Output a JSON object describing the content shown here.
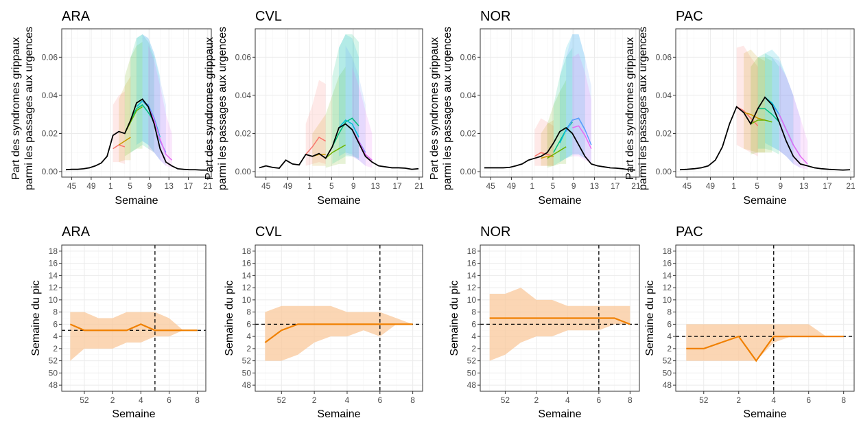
{
  "colors": {
    "observed": "#000000",
    "peak_line": "#F08000",
    "peak_band": "#F9C89B",
    "grid_major": "#EBEBEB",
    "grid_minor": "#F5F5F5",
    "panel_border": "#333333",
    "forecast_palette": [
      "#F8766D",
      "#E58700",
      "#C99800",
      "#A3A500",
      "#6BB100",
      "#00BA38",
      "#00BF7D",
      "#00C0AF",
      "#00BCD8",
      "#00B0F6",
      "#619CFF",
      "#B983FF",
      "#E76BF3",
      "#FD61D1",
      "#FF67A4"
    ]
  },
  "chart_data": [
    {
      "type": "line",
      "region": "ARA",
      "title": "ARA",
      "xlabel": "Semaine",
      "ylabel_lines": [
        "Part des syndromes grippaux",
        "parmi les passages aux urgences"
      ],
      "x_ticks": [
        "45",
        "49",
        "1",
        "5",
        "9",
        "13",
        "17",
        "21"
      ],
      "y_ticks": [
        "0.00",
        "0.02",
        "0.04",
        "0.06"
      ],
      "ylim": [
        0,
        0.072
      ],
      "observed": [
        0.001,
        0.0012,
        0.0012,
        0.0015,
        0.002,
        0.003,
        0.0045,
        0.008,
        0.019,
        0.021,
        0.02,
        0.027,
        0.036,
        0.038,
        0.034,
        0.025,
        0.012,
        0.005,
        0.003,
        0.0015,
        0.0012,
        0.001,
        0.001,
        0.0008,
        0.0008
      ],
      "forecasts": [
        {
          "start": 8,
          "values": [
            0.012,
            0.014,
            0.013
          ],
          "lo": [
            0.005,
            0.005,
            0.004
          ],
          "hi": [
            0.035,
            0.04,
            0.042
          ]
        },
        {
          "start": 9,
          "values": [
            0.014,
            0.016,
            0.018
          ],
          "lo": [
            0.005,
            0.006,
            0.006
          ],
          "hi": [
            0.038,
            0.045,
            0.05
          ]
        },
        {
          "start": 10,
          "values": [
            0.02,
            0.026,
            0.032,
            0.034
          ],
          "lo": [
            0.008,
            0.01,
            0.012,
            0.012
          ],
          "hi": [
            0.05,
            0.06,
            0.066,
            0.068
          ]
        },
        {
          "start": 11,
          "values": [
            0.027,
            0.033,
            0.035,
            0.031,
            0.026
          ],
          "lo": [
            0.01,
            0.012,
            0.014,
            0.012,
            0.01
          ],
          "hi": [
            0.06,
            0.07,
            0.072,
            0.068,
            0.06
          ]
        },
        {
          "start": 12,
          "values": [
            0.034,
            0.037,
            0.034,
            0.028,
            0.018
          ],
          "lo": [
            0.014,
            0.016,
            0.014,
            0.01,
            0.006
          ],
          "hi": [
            0.07,
            0.072,
            0.07,
            0.062,
            0.05
          ]
        },
        {
          "start": 13,
          "values": [
            0.037,
            0.035,
            0.028,
            0.016,
            0.01
          ],
          "lo": [
            0.016,
            0.014,
            0.01,
            0.006,
            0.003
          ],
          "hi": [
            0.072,
            0.07,
            0.062,
            0.048,
            0.035
          ]
        },
        {
          "start": 14,
          "values": [
            0.034,
            0.027,
            0.017,
            0.009,
            0.006
          ],
          "lo": [
            0.012,
            0.01,
            0.006,
            0.003,
            0.002
          ],
          "hi": [
            0.066,
            0.058,
            0.045,
            0.03,
            0.02
          ]
        }
      ]
    },
    {
      "type": "line",
      "region": "CVL",
      "title": "CVL",
      "xlabel": "Semaine",
      "ylabel_lines": [
        "Part des syndromes grippaux",
        "parmi les passages aux urgences"
      ],
      "x_ticks": [
        "45",
        "49",
        "1",
        "5",
        "9",
        "13",
        "17",
        "21"
      ],
      "y_ticks": [
        "0.00",
        "0.02",
        "0.04",
        "0.06"
      ],
      "ylim": [
        0,
        0.072
      ],
      "observed": [
        0.002,
        0.003,
        0.0022,
        0.0018,
        0.006,
        0.004,
        0.0035,
        0.009,
        0.008,
        0.0095,
        0.007,
        0.013,
        0.023,
        0.025,
        0.022,
        0.015,
        0.008,
        0.005,
        0.003,
        0.0025,
        0.002,
        0.002,
        0.0018,
        0.0012,
        0.0015
      ],
      "forecasts": [
        {
          "start": 7,
          "values": [
            0.009,
            0.013,
            0.018,
            0.016
          ],
          "lo": [
            0.003,
            0.004,
            0.005,
            0.004
          ],
          "hi": [
            0.025,
            0.035,
            0.048,
            0.046
          ]
        },
        {
          "start": 8,
          "values": [
            0.008,
            0.009,
            0.009
          ],
          "lo": [
            0.003,
            0.003,
            0.003
          ],
          "hi": [
            0.02,
            0.025,
            0.03
          ]
        },
        {
          "start": 10,
          "values": [
            0.007,
            0.01,
            0.012,
            0.014
          ],
          "lo": [
            0.002,
            0.003,
            0.004,
            0.004
          ],
          "hi": [
            0.03,
            0.04,
            0.05,
            0.055
          ]
        },
        {
          "start": 11,
          "values": [
            0.013,
            0.02,
            0.026,
            0.028,
            0.024
          ],
          "lo": [
            0.004,
            0.006,
            0.008,
            0.008,
            0.007
          ],
          "hi": [
            0.05,
            0.065,
            0.072,
            0.072,
            0.068
          ]
        },
        {
          "start": 12,
          "values": [
            0.023,
            0.027,
            0.025,
            0.018
          ],
          "lo": [
            0.008,
            0.01,
            0.009,
            0.006
          ],
          "hi": [
            0.065,
            0.072,
            0.07,
            0.06
          ]
        },
        {
          "start": 13,
          "values": [
            0.025,
            0.022,
            0.016,
            0.01
          ],
          "lo": [
            0.009,
            0.008,
            0.006,
            0.003
          ],
          "hi": [
            0.066,
            0.06,
            0.05,
            0.035
          ]
        },
        {
          "start": 14,
          "values": [
            0.022,
            0.016,
            0.009,
            0.006
          ],
          "lo": [
            0.008,
            0.006,
            0.003,
            0.002
          ],
          "hi": [
            0.055,
            0.045,
            0.032,
            0.02
          ]
        }
      ]
    },
    {
      "type": "line",
      "region": "NOR",
      "title": "NOR",
      "xlabel": "Semaine",
      "ylabel_lines": [
        "Part des syndromes grippaux",
        "parmi les passages aux urgences"
      ],
      "x_ticks": [
        "45",
        "49",
        "1",
        "5",
        "9",
        "13",
        "17",
        "21"
      ],
      "y_ticks": [
        "0.00",
        "0.02",
        "0.04",
        "0.06"
      ],
      "ylim": [
        0,
        0.072
      ],
      "observed": [
        0.002,
        0.002,
        0.002,
        0.002,
        0.0022,
        0.003,
        0.004,
        0.006,
        0.007,
        0.008,
        0.01,
        0.015,
        0.021,
        0.023,
        0.02,
        0.014,
        0.008,
        0.004,
        0.003,
        0.0025,
        0.002,
        0.0018,
        0.0015,
        0.001,
        0.0008
      ],
      "forecasts": [
        {
          "start": 8,
          "values": [
            0.008,
            0.01,
            0.009,
            0.008
          ],
          "lo": [
            0.003,
            0.003,
            0.003,
            0.003
          ],
          "hi": [
            0.022,
            0.028,
            0.026,
            0.024
          ]
        },
        {
          "start": 9,
          "values": [
            0.007,
            0.008,
            0.008
          ],
          "lo": [
            0.003,
            0.003,
            0.003
          ],
          "hi": [
            0.02,
            0.025,
            0.027
          ]
        },
        {
          "start": 10,
          "values": [
            0.007,
            0.009,
            0.011,
            0.013
          ],
          "lo": [
            0.002,
            0.003,
            0.004,
            0.004
          ],
          "hi": [
            0.025,
            0.035,
            0.042,
            0.048
          ]
        },
        {
          "start": 11,
          "values": [
            0.01,
            0.016,
            0.022,
            0.026
          ],
          "lo": [
            0.003,
            0.005,
            0.007,
            0.008
          ],
          "hi": [
            0.035,
            0.05,
            0.06,
            0.065
          ]
        },
        {
          "start": 12,
          "values": [
            0.015,
            0.022,
            0.027,
            0.028,
            0.022
          ],
          "lo": [
            0.005,
            0.007,
            0.009,
            0.009,
            0.007
          ],
          "hi": [
            0.05,
            0.065,
            0.072,
            0.072,
            0.06
          ]
        },
        {
          "start": 13,
          "values": [
            0.021,
            0.027,
            0.028,
            0.022,
            0.014
          ],
          "lo": [
            0.007,
            0.009,
            0.009,
            0.007,
            0.004
          ],
          "hi": [
            0.06,
            0.072,
            0.072,
            0.06,
            0.045
          ]
        },
        {
          "start": 14,
          "values": [
            0.023,
            0.024,
            0.019,
            0.012
          ],
          "lo": [
            0.008,
            0.008,
            0.006,
            0.004
          ],
          "hi": [
            0.06,
            0.062,
            0.052,
            0.038
          ]
        }
      ]
    },
    {
      "type": "line",
      "region": "PAC",
      "title": "PAC",
      "xlabel": "Semaine",
      "ylabel_lines": [
        "Part des syndromes grippaux",
        "parmi les passages aux urgences"
      ],
      "x_ticks": [
        "45",
        "49",
        "1",
        "5",
        "9",
        "13",
        "17",
        "21"
      ],
      "y_ticks": [
        "0.00",
        "0.02",
        "0.04",
        "0.06"
      ],
      "ylim": [
        0,
        0.072
      ],
      "observed": [
        0.001,
        0.0012,
        0.0015,
        0.002,
        0.003,
        0.006,
        0.013,
        0.025,
        0.034,
        0.031,
        0.025,
        0.033,
        0.039,
        0.035,
        0.026,
        0.016,
        0.008,
        0.004,
        0.003,
        0.002,
        0.0015,
        0.0012,
        0.001,
        0.0008,
        0.001
      ],
      "forecasts": [
        {
          "start": 8,
          "values": [
            0.034,
            0.032,
            0.028,
            0.024
          ],
          "lo": [
            0.014,
            0.012,
            0.01,
            0.008
          ],
          "hi": [
            0.065,
            0.066,
            0.06,
            0.055
          ]
        },
        {
          "start": 9,
          "values": [
            0.031,
            0.03,
            0.028,
            0.027
          ],
          "lo": [
            0.012,
            0.011,
            0.01,
            0.01
          ],
          "hi": [
            0.062,
            0.064,
            0.06,
            0.058
          ]
        },
        {
          "start": 10,
          "values": [
            0.025,
            0.027,
            0.027,
            0.026
          ],
          "lo": [
            0.009,
            0.01,
            0.01,
            0.01
          ],
          "hi": [
            0.055,
            0.06,
            0.06,
            0.058
          ]
        },
        {
          "start": 11,
          "values": [
            0.033,
            0.033,
            0.03,
            0.026
          ],
          "lo": [
            0.012,
            0.012,
            0.011,
            0.009
          ],
          "hi": [
            0.06,
            0.062,
            0.06,
            0.055
          ]
        },
        {
          "start": 12,
          "values": [
            0.039,
            0.036,
            0.03,
            0.022,
            0.014
          ],
          "lo": [
            0.015,
            0.013,
            0.011,
            0.008,
            0.004
          ],
          "hi": [
            0.062,
            0.064,
            0.06,
            0.05,
            0.04
          ]
        },
        {
          "start": 13,
          "values": [
            0.035,
            0.03,
            0.022,
            0.014,
            0.008
          ],
          "lo": [
            0.013,
            0.011,
            0.008,
            0.004,
            0.002
          ],
          "hi": [
            0.06,
            0.058,
            0.05,
            0.04,
            0.028
          ]
        },
        {
          "start": 14,
          "values": [
            0.03,
            0.022,
            0.014,
            0.008,
            0.004
          ],
          "lo": [
            0.011,
            0.008,
            0.004,
            0.002,
            0.001
          ],
          "hi": [
            0.056,
            0.05,
            0.04,
            0.028,
            0.016
          ]
        }
      ]
    },
    {
      "type": "line",
      "region": "ARA",
      "title": "ARA",
      "xlabel": "Semaine",
      "ylabel": "Semaine du pic",
      "x_ticks": [
        "52",
        "2",
        "4",
        "6",
        "8"
      ],
      "y_ticks": [
        "48",
        "50",
        "52",
        "2",
        "4",
        "6",
        "8",
        "10",
        "12",
        "14",
        "16",
        "18"
      ],
      "x": [
        51,
        52,
        53,
        54,
        55,
        56,
        57,
        58,
        59,
        60
      ],
      "peak": [
        6,
        5,
        5,
        5,
        5,
        6,
        5,
        5,
        5,
        5
      ],
      "peak_lo": [
        52,
        2,
        2,
        2,
        3,
        3,
        4,
        4,
        5,
        5
      ],
      "peak_hi": [
        8,
        8,
        7,
        7,
        8,
        8,
        8,
        7,
        5,
        5
      ],
      "observed_peak_week": 5,
      "current_week": 5
    },
    {
      "type": "line",
      "region": "CVL",
      "title": "CVL",
      "xlabel": "Semaine",
      "ylabel": "Semaine du pic",
      "x_ticks": [
        "52",
        "2",
        "4",
        "6",
        "8"
      ],
      "y_ticks": [
        "48",
        "50",
        "52",
        "2",
        "4",
        "6",
        "8",
        "10",
        "12",
        "14",
        "16",
        "18"
      ],
      "x": [
        51,
        52,
        53,
        54,
        55,
        56,
        57,
        58,
        59,
        60
      ],
      "peak": [
        3,
        5,
        6,
        6,
        6,
        6,
        6,
        6,
        6,
        6
      ],
      "peak_lo": [
        52,
        52,
        1,
        3,
        4,
        4,
        5,
        4,
        6,
        6
      ],
      "peak_hi": [
        8,
        9,
        9,
        9,
        9,
        8,
        8,
        8,
        7,
        6
      ],
      "observed_peak_week": 6,
      "current_week": 6
    },
    {
      "type": "line",
      "region": "NOR",
      "title": "NOR",
      "xlabel": "Semaine",
      "ylabel": "Semaine du pic",
      "x_ticks": [
        "52",
        "2",
        "4",
        "6",
        "8"
      ],
      "y_ticks": [
        "48",
        "50",
        "52",
        "2",
        "4",
        "6",
        "8",
        "10",
        "12",
        "14",
        "16",
        "18"
      ],
      "x": [
        51,
        52,
        53,
        54,
        55,
        56,
        57,
        58,
        59,
        60
      ],
      "peak": [
        7,
        7,
        7,
        7,
        7,
        7,
        7,
        7,
        7,
        6
      ],
      "peak_lo": [
        52,
        1,
        3,
        4,
        4,
        5,
        5,
        5,
        6,
        6
      ],
      "peak_hi": [
        11,
        11,
        12,
        10,
        10,
        9,
        9,
        9,
        9,
        9
      ],
      "observed_peak_week": 6,
      "current_week": 6
    },
    {
      "type": "line",
      "region": "PAC",
      "title": "PAC",
      "xlabel": "Semaine",
      "ylabel": "Semaine du pic",
      "x_ticks": [
        "52",
        "2",
        "4",
        "6",
        "8"
      ],
      "y_ticks": [
        "48",
        "50",
        "52",
        "2",
        "4",
        "6",
        "8",
        "10",
        "12",
        "14",
        "16",
        "18"
      ],
      "x": [
        51,
        52,
        53,
        54,
        55,
        56,
        57,
        58,
        59,
        60
      ],
      "peak": [
        2,
        2,
        3,
        4,
        52,
        4,
        4,
        4,
        4,
        4
      ],
      "peak_lo": [
        52,
        52,
        52,
        52,
        52,
        3,
        4,
        4,
        4,
        4
      ],
      "peak_hi": [
        6,
        6,
        6,
        6,
        6,
        6,
        6,
        6,
        4,
        4
      ],
      "observed_peak_week": 4,
      "current_week": 4
    }
  ]
}
